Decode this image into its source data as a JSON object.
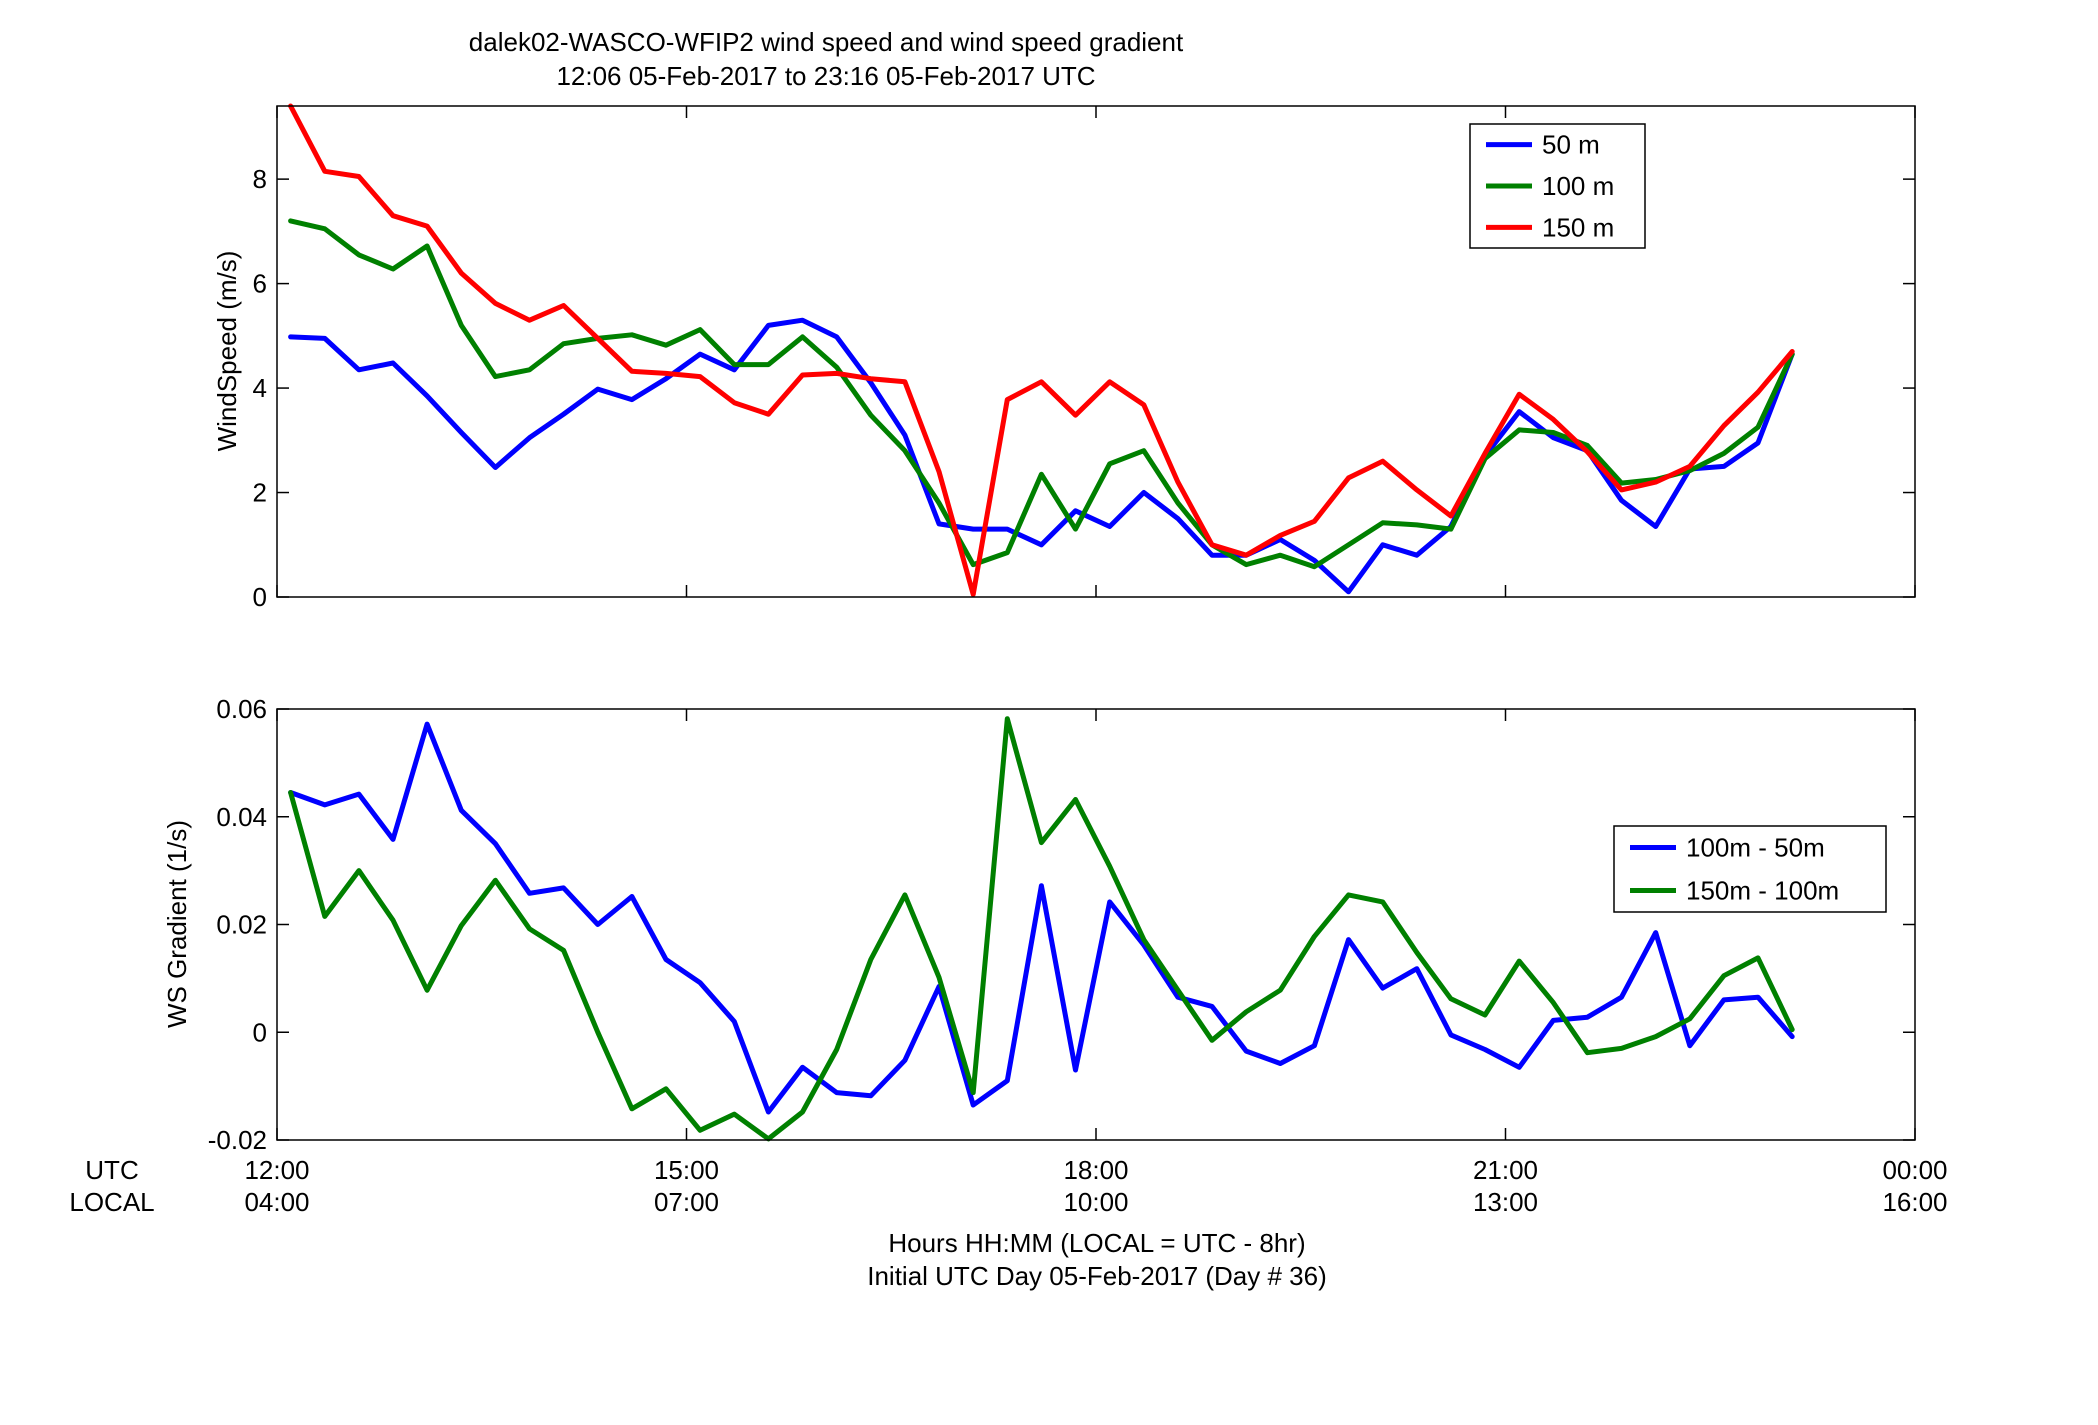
{
  "figure": {
    "title_line1": "dalek02-WASCO-WFIP2  wind speed and wind speed gradient",
    "title_line2": "12:06 05-Feb-2017 to 23:16 05-Feb-2017  UTC",
    "xlabel_line1": "Hours HH:MM  (LOCAL = UTC - 8hr)",
    "xlabel_line2": "Initial UTC Day 05-Feb-2017 (Day # 36)",
    "row_label_utc": "UTC",
    "row_label_local": "LOCAL"
  },
  "colors": {
    "blue": "#0000ff",
    "green": "#008000",
    "red": "#ff0000"
  },
  "chart_data": [
    {
      "type": "line",
      "ylabel": "WindSpeed (m/s)",
      "xlim": [
        12.0,
        24.0
      ],
      "ylim": [
        0,
        9.4
      ],
      "xticks": [
        12,
        15,
        18,
        21,
        24
      ],
      "xtick_labels_utc": [
        "12:00",
        "15:00",
        "18:00",
        "21:00",
        "00:00"
      ],
      "xtick_labels_local": [
        "04:00",
        "07:00",
        "10:00",
        "13:00",
        "16:00"
      ],
      "yticks": [
        0,
        2,
        4,
        6,
        8
      ],
      "ytick_labels": [
        "0",
        "2",
        "4",
        "6",
        "8"
      ],
      "legend_position": "top-right",
      "x": [
        12.1,
        12.35,
        12.6,
        12.85,
        13.1,
        13.35,
        13.6,
        13.85,
        14.1,
        14.35,
        14.6,
        14.85,
        15.1,
        15.35,
        15.6,
        15.85,
        16.1,
        16.35,
        16.6,
        16.85,
        17.1,
        17.35,
        17.6,
        17.85,
        18.1,
        18.35,
        18.6,
        18.85,
        19.1,
        19.35,
        19.6,
        19.85,
        20.1,
        20.35,
        20.6,
        20.85,
        21.1,
        21.35,
        21.6,
        21.85,
        22.1,
        22.35,
        22.6,
        22.85,
        23.1
      ],
      "series": [
        {
          "name": "50 m",
          "color": "#0000ff",
          "values": [
            4.98,
            4.95,
            4.35,
            4.48,
            3.85,
            3.15,
            2.48,
            3.05,
            3.5,
            3.98,
            3.78,
            4.18,
            4.65,
            4.35,
            5.2,
            5.3,
            4.98,
            4.1,
            3.1,
            1.4,
            1.3,
            1.3,
            1.0,
            1.65,
            1.35,
            2.0,
            1.5,
            0.8,
            0.8,
            1.1,
            0.7,
            0.1,
            1.0,
            0.8,
            1.35,
            2.7,
            3.55,
            3.05,
            2.8,
            1.85,
            1.35,
            2.45,
            2.5,
            2.95,
            4.65
          ]
        },
        {
          "name": "100 m",
          "color": "#008000",
          "values": [
            7.2,
            7.05,
            6.55,
            6.28,
            6.72,
            5.2,
            4.22,
            4.35,
            4.85,
            4.95,
            5.02,
            4.82,
            5.12,
            4.45,
            4.45,
            4.98,
            4.4,
            3.48,
            2.8,
            1.8,
            0.62,
            0.85,
            2.35,
            1.3,
            2.55,
            2.8,
            1.8,
            1.0,
            0.62,
            0.8,
            0.58,
            1.0,
            1.42,
            1.38,
            1.3,
            2.65,
            3.2,
            3.15,
            2.9,
            2.18,
            2.25,
            2.42,
            2.75,
            3.25,
            4.65
          ]
        },
        {
          "name": "150 m",
          "color": "#ff0000",
          "values": [
            9.4,
            8.15,
            8.05,
            7.3,
            7.1,
            6.2,
            5.62,
            5.3,
            5.58,
            4.95,
            4.32,
            4.28,
            4.22,
            3.72,
            3.5,
            4.25,
            4.28,
            4.18,
            4.12,
            2.4,
            0.05,
            3.78,
            4.12,
            3.48,
            4.12,
            3.68,
            2.2,
            1.0,
            0.8,
            1.18,
            1.45,
            2.28,
            2.6,
            2.05,
            1.55,
            2.75,
            3.88,
            3.4,
            2.78,
            2.05,
            2.2,
            2.5,
            3.28,
            3.92,
            4.7
          ]
        }
      ]
    },
    {
      "type": "line",
      "ylabel": "WS Gradient (1/s)",
      "xlim": [
        12.0,
        24.0
      ],
      "ylim": [
        -0.02,
        0.06
      ],
      "xticks": [
        12,
        15,
        18,
        21,
        24
      ],
      "yticks": [
        -0.02,
        0,
        0.02,
        0.04,
        0.06
      ],
      "ytick_labels": [
        "-0.02",
        "0",
        "0.02",
        "0.04",
        "0.06"
      ],
      "legend_position": "right",
      "x": [
        12.1,
        12.35,
        12.6,
        12.85,
        13.1,
        13.35,
        13.6,
        13.85,
        14.1,
        14.35,
        14.6,
        14.85,
        15.1,
        15.35,
        15.6,
        15.85,
        16.1,
        16.35,
        16.6,
        16.85,
        17.1,
        17.35,
        17.6,
        17.85,
        18.1,
        18.35,
        18.6,
        18.85,
        19.1,
        19.35,
        19.6,
        19.85,
        20.1,
        20.35,
        20.6,
        20.85,
        21.1,
        21.35,
        21.6,
        21.85,
        22.1,
        22.35,
        22.6,
        22.85,
        23.1
      ],
      "series": [
        {
          "name": "100m - 50m",
          "color": "#0000ff",
          "values": [
            0.0445,
            0.0422,
            0.0442,
            0.0358,
            0.0572,
            0.0412,
            0.035,
            0.0258,
            0.0268,
            0.02,
            0.0252,
            0.0135,
            0.0092,
            0.002,
            -0.0148,
            -0.0065,
            -0.0112,
            -0.0118,
            -0.0052,
            0.0085,
            -0.0135,
            -0.009,
            0.0272,
            -0.007,
            0.0242,
            0.0162,
            0.0065,
            0.0048,
            -0.0035,
            -0.0058,
            -0.0025,
            0.0172,
            0.0082,
            0.0118,
            -0.0005,
            -0.0032,
            -0.0065,
            0.0022,
            0.0028,
            0.0065,
            0.0185,
            -0.0025,
            0.006,
            0.0065,
            -0.0008
          ]
        },
        {
          "name": "150m - 100m",
          "color": "#008000",
          "values": [
            0.0445,
            0.0215,
            0.03,
            0.0208,
            0.0078,
            0.0198,
            0.0282,
            0.0192,
            0.0152,
            0.0,
            -0.0142,
            -0.0105,
            -0.0182,
            -0.0152,
            -0.0198,
            -0.0148,
            -0.0032,
            0.0135,
            0.0255,
            0.0102,
            -0.0112,
            0.0582,
            0.0352,
            0.0432,
            0.0308,
            0.0172,
            0.0078,
            -0.0015,
            0.0038,
            0.0078,
            0.0178,
            0.0255,
            0.0242,
            0.0148,
            0.0062,
            0.0032,
            0.0132,
            0.0055,
            -0.0038,
            -0.003,
            -0.0008,
            0.0025,
            0.0105,
            0.0138,
            0.0005
          ]
        }
      ]
    }
  ]
}
